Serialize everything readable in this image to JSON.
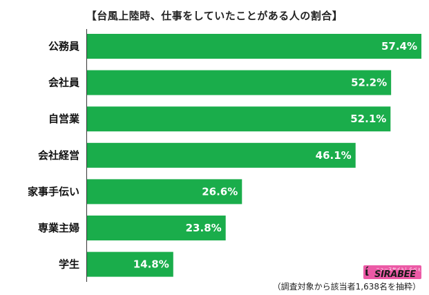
{
  "chart_data": {
    "type": "bar",
    "orientation": "horizontal",
    "title": "【台風上陸時、仕事をしていたことがある人の割合】",
    "categories": [
      "公務員",
      "会社員",
      "自営業",
      "会社経営",
      "家事手伝い",
      "専業主婦",
      "学生"
    ],
    "values": [
      57.4,
      52.2,
      52.1,
      46.1,
      26.6,
      23.8,
      14.8
    ],
    "value_labels": [
      "57.4%",
      "52.2%",
      "52.1%",
      "46.1%",
      "26.6%",
      "23.8%",
      "14.8%"
    ],
    "unit": "%",
    "xlim": [
      0,
      57.4
    ],
    "bar_color": "#1aad4b",
    "grid": false,
    "legend": "none"
  },
  "logo": {
    "name": "SIRABEE",
    "tagline": "ニュースサイトしらべぇ"
  },
  "footnote": "（調査対象から該当者1,638名を抽粋）"
}
